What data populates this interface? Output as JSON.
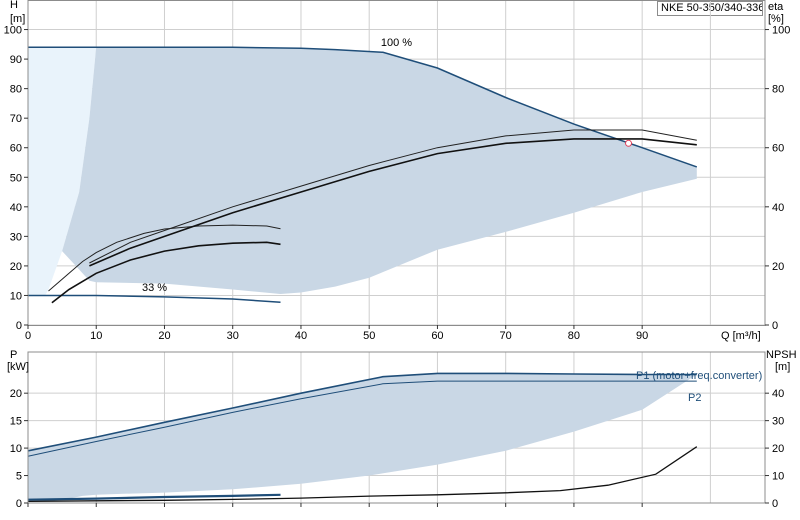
{
  "product_label": "NKE 50-350/340-336",
  "chart_data": [
    {
      "type": "line",
      "name": "head",
      "left_axis": {
        "title": "H",
        "unit": "[m]",
        "ylim": [
          0,
          110
        ],
        "ticks": [
          0,
          10,
          20,
          30,
          40,
          50,
          60,
          70,
          80,
          90,
          100
        ]
      },
      "right_axis": {
        "title": "eta",
        "unit": "[%]",
        "ylim": [
          0,
          110
        ],
        "ticks": [
          0,
          20,
          40,
          60,
          80,
          100
        ]
      },
      "x_axis": {
        "label": "Q [m³/h]",
        "xlim": [
          0,
          108
        ],
        "ticks": [
          0,
          10,
          20,
          30,
          40,
          50,
          60,
          70,
          80,
          90
        ]
      },
      "grid": true,
      "annotations": [
        {
          "text": "100 %",
          "x": 52,
          "y": 94.5
        },
        {
          "text": "33 %",
          "x": 17,
          "y": 11.5
        }
      ],
      "operating_point": {
        "x": 88,
        "y": 61.5
      },
      "series": [
        {
          "role": "head_max",
          "x": [
            0,
            10,
            20,
            30,
            40,
            45,
            52,
            60,
            70,
            80,
            90,
            98
          ],
          "y": [
            94,
            94,
            94,
            94,
            93.7,
            93.2,
            92.3,
            87,
            77,
            68,
            60,
            53.5
          ]
        },
        {
          "role": "head_min",
          "x": [
            0,
            10,
            20,
            30,
            37
          ],
          "y": [
            10,
            10,
            9.5,
            8.8,
            7.7
          ]
        },
        {
          "role": "head_part_upper",
          "x": [
            3,
            5,
            8,
            10,
            13,
            17,
            20,
            25,
            30,
            35,
            37
          ],
          "y": [
            11.5,
            15.5,
            21.5,
            24.5,
            28,
            31,
            32.5,
            33.5,
            33.8,
            33.5,
            32.6
          ]
        },
        {
          "role": "head_part_lower",
          "x": [
            3.5,
            6,
            10,
            15,
            20,
            25,
            30,
            35,
            37
          ],
          "y": [
            7.5,
            12,
            17.5,
            22,
            25,
            26.8,
            27.7,
            28,
            27.3
          ]
        },
        {
          "role": "eta_upper",
          "x": [
            9,
            15,
            20,
            30,
            40,
            50,
            60,
            70,
            80,
            90,
            98
          ],
          "y": [
            21,
            28,
            32,
            40,
            47,
            54,
            60,
            64,
            66,
            66,
            62.5
          ]
        },
        {
          "role": "eta_lower",
          "x": [
            9,
            15,
            20,
            30,
            40,
            50,
            60,
            70,
            80,
            90,
            98
          ],
          "y": [
            20,
            26,
            30,
            38,
            45,
            52,
            58,
            61.5,
            63,
            63,
            61
          ]
        }
      ]
    },
    {
      "type": "line",
      "name": "power",
      "left_axis": {
        "title": "P",
        "unit": "[kW]",
        "ylim": [
          0,
          27.5
        ],
        "ticks": [
          0,
          5,
          10,
          15,
          20
        ]
      },
      "right_axis": {
        "title": "NPSH",
        "unit": "[m]",
        "ylim": [
          0,
          55
        ],
        "ticks": [
          0,
          10,
          20,
          30,
          40
        ]
      },
      "x_axis": {
        "xlim": [
          0,
          108
        ]
      },
      "grid": true,
      "series_labels": {
        "p1": "P1 (motor+freq.converter)",
        "p2": "P2"
      },
      "series": [
        {
          "role": "p1",
          "x": [
            0,
            10,
            20,
            30,
            40,
            52,
            60,
            70,
            80,
            90,
            98
          ],
          "y": [
            9.5,
            12,
            14.7,
            17.3,
            20,
            23,
            23.6,
            23.6,
            23.5,
            23.4,
            23.4
          ]
        },
        {
          "role": "p2",
          "x": [
            0,
            10,
            20,
            30,
            40,
            52,
            60,
            70,
            80,
            90,
            98
          ],
          "y": [
            8.5,
            11.2,
            13.8,
            16.5,
            19,
            21.7,
            22.2,
            22.2,
            22.2,
            22.2,
            22.2
          ]
        },
        {
          "role": "p_low",
          "x": [
            0,
            10,
            20,
            30,
            37
          ],
          "y": [
            0.6,
            0.8,
            1.1,
            1.3,
            1.5
          ]
        },
        {
          "role": "npsh",
          "x": [
            0,
            10,
            20,
            30,
            40,
            50,
            60,
            70,
            78,
            85,
            92,
            98
          ],
          "y": [
            0.6,
            0.8,
            1,
            1.3,
            1.8,
            2.5,
            3,
            3.7,
            4.5,
            6.5,
            10.5,
            20.5
          ]
        }
      ]
    }
  ]
}
